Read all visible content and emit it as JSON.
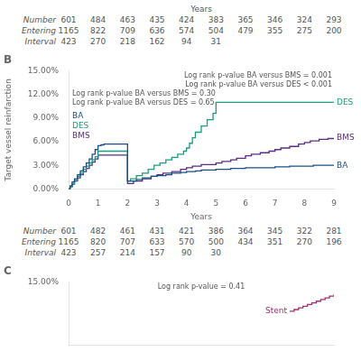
{
  "chart_data": [
    {
      "type": "table",
      "title": "Years",
      "series": [
        {
          "name": "Number",
          "values": [
            601,
            484,
            463,
            435,
            424,
            383,
            365,
            346,
            324,
            293
          ]
        },
        {
          "name": "Entering",
          "values": [
            1165,
            822,
            709,
            636,
            574,
            504,
            479,
            355,
            275,
            200
          ]
        },
        {
          "name": "Interval",
          "values": [
            423,
            270,
            218,
            162,
            94,
            31
          ]
        }
      ]
    },
    {
      "type": "step",
      "title": "B",
      "xlabel": "Years",
      "ylabel": "Target vessel reinfarction",
      "annotations": [
        "Log rank p-value BA versus BMS = 0.001\nLog rank p-value BA versus DES < 0.001",
        "Log rank p-value BA versus BMS = 0.30\nLog rank p-value BA versus DES = 0.65"
      ],
      "xlim": [
        0,
        9
      ],
      "ylim": [
        0,
        0.15
      ],
      "xticks": [
        0,
        1,
        2,
        3,
        4,
        5,
        6,
        7,
        8,
        9
      ],
      "yticks": [
        {
          "value": 0,
          "label": "0.00%"
        },
        {
          "value": 0.03,
          "label": "3.00%"
        },
        {
          "value": 0.06,
          "label": "6.00%"
        },
        {
          "value": 0.09,
          "label": "9.00%"
        },
        {
          "value": 0.12,
          "label": "12.00%"
        },
        {
          "value": 0.15,
          "label": "15.00%"
        }
      ],
      "grid": false,
      "series": [
        {
          "name": "BA",
          "color": "#1a4f8a",
          "x": [
            0,
            0.05,
            0.12,
            0.2,
            0.3,
            0.4,
            0.5,
            0.6,
            0.7,
            0.8,
            0.9,
            1.0,
            1.1,
            1.2,
            1.3,
            1.5,
            1.7,
            2.0,
            2.3,
            2.5,
            2.8,
            3.0,
            3.3,
            3.5,
            3.8,
            4.0,
            4.3,
            4.5,
            5.0,
            5.5,
            6.0,
            6.5,
            7.0,
            7.5,
            8.0,
            8.3,
            9.0
          ],
          "values": [
            0,
            0.004,
            0.009,
            0.013,
            0.018,
            0.023,
            0.028,
            0.033,
            0.038,
            0.044,
            0.05,
            0.055,
            0.056,
            0.057,
            0.057,
            0.057,
            0.057,
            0.01,
            0.012,
            0.014,
            0.016,
            0.017,
            0.018,
            0.02,
            0.021,
            0.022,
            0.023,
            0.024,
            0.025,
            0.026,
            0.027,
            0.027,
            0.028,
            0.029,
            0.029,
            0.03,
            0.03
          ]
        },
        {
          "name": "DES",
          "color": "#1a9e7e",
          "x": [
            0,
            0.05,
            0.12,
            0.2,
            0.3,
            0.4,
            0.5,
            0.6,
            0.7,
            0.8,
            0.9,
            1.0,
            1.1,
            1.5,
            2.0,
            2.1,
            2.3,
            2.5,
            2.7,
            2.9,
            3.1,
            3.3,
            3.5,
            3.7,
            3.9,
            4.0,
            4.1,
            4.2,
            4.3,
            4.5,
            4.7,
            4.9,
            5.0,
            5.1,
            5.5,
            6.0,
            6.5,
            7.0,
            7.5,
            8.0,
            8.5,
            9.0
          ],
          "values": [
            0,
            0.003,
            0.007,
            0.011,
            0.016,
            0.02,
            0.025,
            0.029,
            0.033,
            0.037,
            0.041,
            0.048,
            0.048,
            0.048,
            0.01,
            0.013,
            0.017,
            0.02,
            0.025,
            0.03,
            0.033,
            0.037,
            0.04,
            0.044,
            0.048,
            0.052,
            0.058,
            0.065,
            0.072,
            0.08,
            0.088,
            0.096,
            0.11,
            0.11,
            0.11,
            0.11,
            0.11,
            0.11,
            0.11,
            0.11,
            0.11,
            0.11
          ]
        },
        {
          "name": "BMS",
          "color": "#5a2d82",
          "x": [
            0,
            0.05,
            0.12,
            0.2,
            0.3,
            0.4,
            0.5,
            0.6,
            0.7,
            0.8,
            0.9,
            1.0,
            1.1,
            1.5,
            2.0,
            2.2,
            2.5,
            2.8,
            3.0,
            3.2,
            3.5,
            3.8,
            4.0,
            4.2,
            4.5,
            5.0,
            5.2,
            5.5,
            5.7,
            6.0,
            6.2,
            6.5,
            6.8,
            7.0,
            7.2,
            7.5,
            7.8,
            8.0,
            8.2,
            8.5,
            8.8,
            9.0
          ],
          "values": [
            0,
            0.003,
            0.006,
            0.01,
            0.014,
            0.018,
            0.022,
            0.026,
            0.03,
            0.034,
            0.038,
            0.043,
            0.043,
            0.043,
            0.007,
            0.01,
            0.013,
            0.016,
            0.018,
            0.02,
            0.022,
            0.025,
            0.027,
            0.029,
            0.031,
            0.033,
            0.035,
            0.037,
            0.039,
            0.042,
            0.044,
            0.046,
            0.048,
            0.05,
            0.052,
            0.054,
            0.057,
            0.059,
            0.061,
            0.063,
            0.064,
            0.065
          ]
        }
      ]
    },
    {
      "type": "table",
      "series": [
        {
          "name": "Number",
          "values": [
            601,
            482,
            461,
            431,
            421,
            386,
            364,
            345,
            322,
            281
          ]
        },
        {
          "name": "Entering",
          "values": [
            1165,
            820,
            707,
            633,
            570,
            500,
            434,
            351,
            270,
            196
          ]
        },
        {
          "name": "Interval",
          "values": [
            423,
            257,
            214,
            157,
            90,
            30
          ]
        }
      ]
    },
    {
      "type": "step",
      "title": "C",
      "annotations": [
        "Log rank p-value = 0.41"
      ],
      "xlim": [
        0,
        9
      ],
      "ylim": [
        0,
        0.15
      ],
      "yticks": [
        {
          "value": 0.15,
          "label": "15.00%"
        }
      ],
      "tick_labels": "y",
      "grid": false,
      "series": [
        {
          "name": "Stent",
          "color": "#a03070",
          "x": [
            7.5,
            7.65,
            7.8,
            7.95,
            8.1,
            8.25,
            8.4,
            8.55,
            8.7,
            8.85,
            9.0
          ],
          "values": [
            0.08,
            0.084,
            0.088,
            0.092,
            0.096,
            0.1,
            0.104,
            0.108,
            0.112,
            0.116,
            0.12
          ]
        }
      ]
    }
  ]
}
